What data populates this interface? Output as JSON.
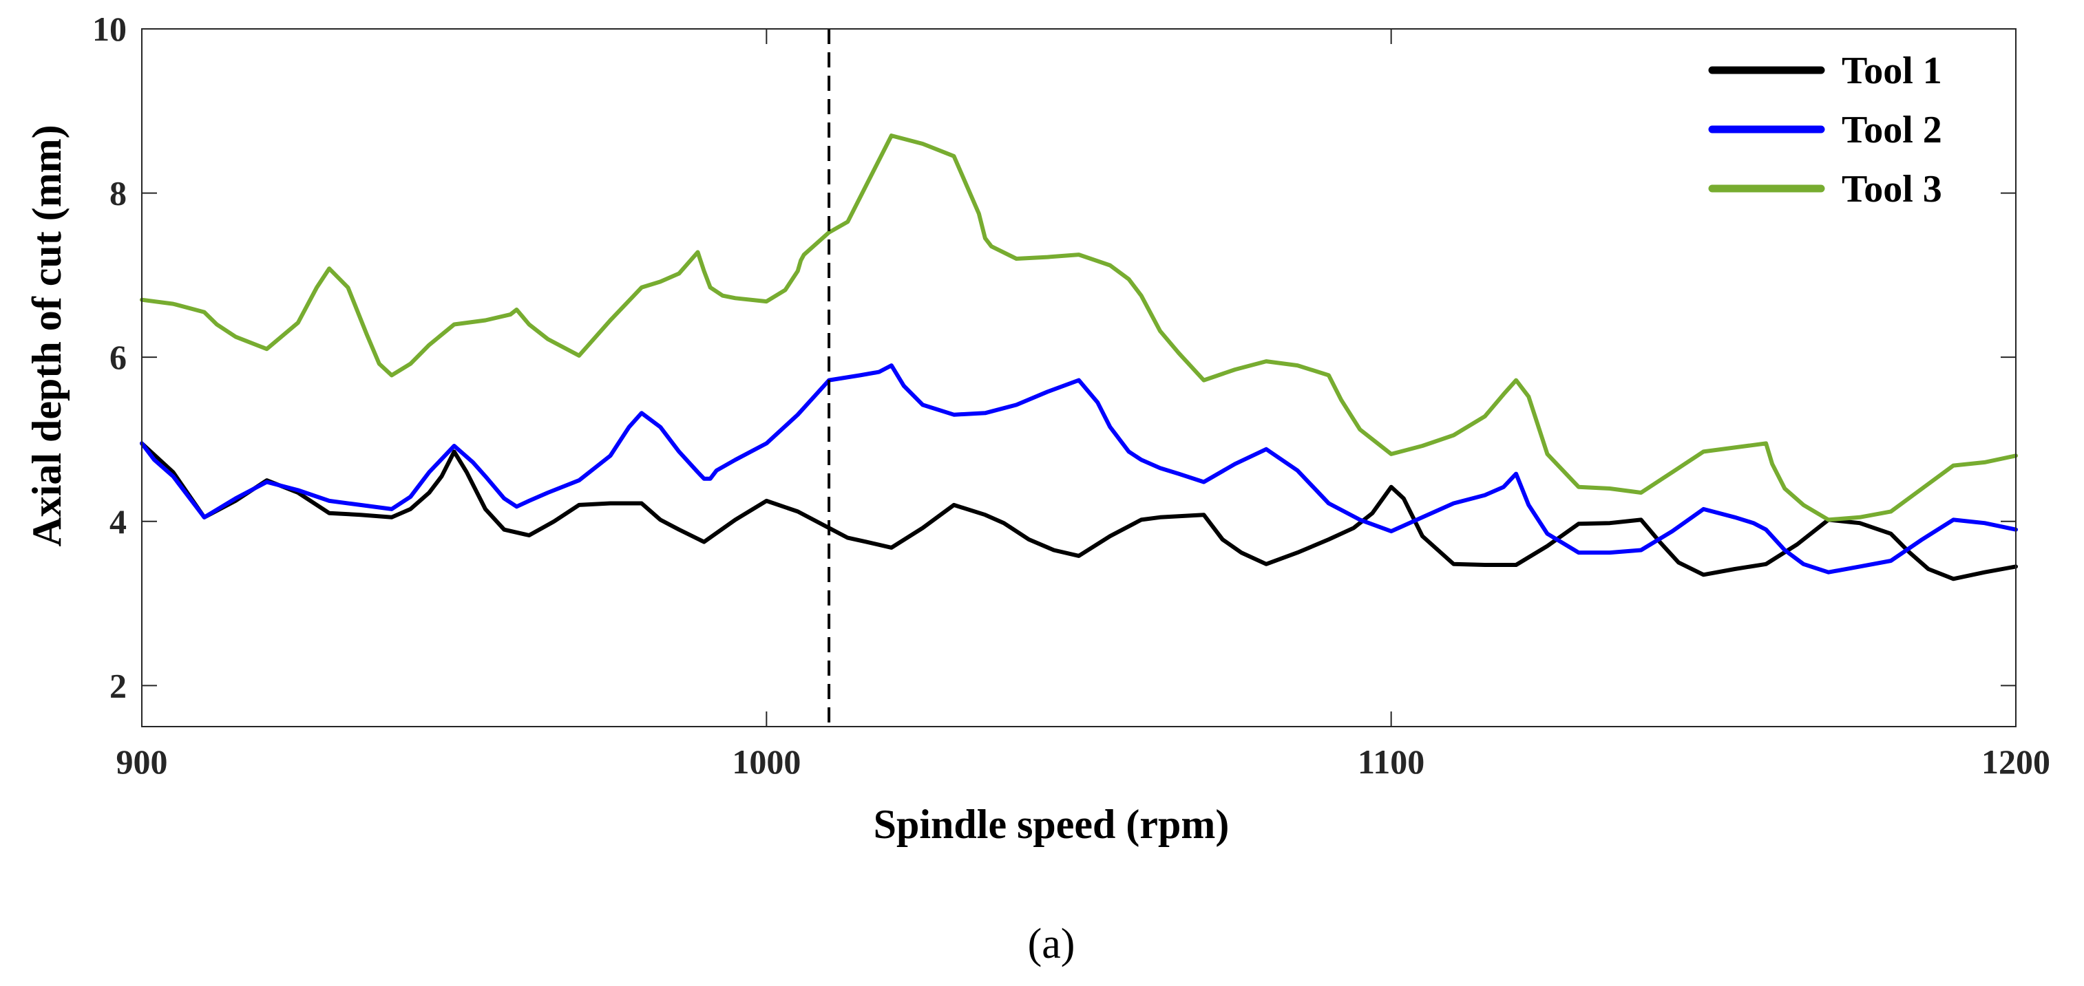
{
  "chart_data": {
    "type": "line",
    "xlabel": "Spindle speed (rpm)",
    "ylabel": "Axial depth of cut (mm)",
    "xlim": [
      900,
      1200
    ],
    "ylim": [
      1.5,
      10
    ],
    "xticks": [
      900,
      1000,
      1100,
      1200
    ],
    "yticks": [
      2,
      4,
      6,
      8,
      10
    ],
    "grid": false,
    "legend_position": "top-right",
    "caption": "(a)",
    "vline": {
      "x": 1010,
      "style": "dashed",
      "color": "#000000"
    },
    "series": [
      {
        "name": "Tool 1",
        "color": "#000000",
        "x": [
          900,
          905,
          910,
          915,
          920,
          925,
          930,
          935,
          940,
          943,
          946,
          948,
          950,
          952,
          955,
          958,
          962,
          966,
          970,
          975,
          980,
          983,
          986,
          990,
          995,
          1000,
          1005,
          1010,
          1013,
          1016,
          1020,
          1025,
          1030,
          1035,
          1038,
          1042,
          1046,
          1050,
          1055,
          1060,
          1063,
          1070,
          1073,
          1076,
          1080,
          1085,
          1090,
          1094,
          1097,
          1100,
          1102,
          1105,
          1110,
          1115,
          1120,
          1125,
          1130,
          1135,
          1140,
          1143,
          1146,
          1150,
          1155,
          1160,
          1165,
          1170,
          1175,
          1180,
          1183,
          1186,
          1190,
          1195,
          1200
        ],
        "values": [
          4.95,
          4.6,
          4.05,
          4.25,
          4.5,
          4.35,
          4.1,
          4.08,
          4.05,
          4.15,
          4.35,
          4.55,
          4.85,
          4.6,
          4.15,
          3.9,
          3.83,
          4.0,
          4.2,
          4.22,
          4.22,
          4.02,
          3.9,
          3.75,
          4.02,
          4.25,
          4.12,
          3.92,
          3.8,
          3.75,
          3.68,
          3.92,
          4.2,
          4.08,
          3.98,
          3.78,
          3.65,
          3.58,
          3.82,
          4.02,
          4.05,
          4.08,
          3.78,
          3.62,
          3.48,
          3.62,
          3.78,
          3.92,
          4.1,
          4.42,
          4.28,
          3.82,
          3.48,
          3.47,
          3.47,
          3.7,
          3.97,
          3.98,
          4.02,
          3.75,
          3.5,
          3.35,
          3.42,
          3.48,
          3.72,
          4.02,
          3.98,
          3.85,
          3.62,
          3.42,
          3.3,
          3.38,
          3.45
        ]
      },
      {
        "name": "Tool 2",
        "color": "#0000ff",
        "x": [
          900,
          902,
          905,
          907,
          910,
          915,
          920,
          925,
          930,
          935,
          940,
          943,
          946,
          950,
          953,
          955,
          958,
          960,
          962,
          965,
          970,
          975,
          978,
          980,
          983,
          986,
          989,
          990,
          991,
          992,
          995,
          1000,
          1005,
          1010,
          1015,
          1018,
          1020,
          1022,
          1025,
          1030,
          1035,
          1040,
          1045,
          1050,
          1053,
          1055,
          1058,
          1060,
          1063,
          1066,
          1070,
          1075,
          1080,
          1085,
          1090,
          1095,
          1100,
          1105,
          1110,
          1115,
          1118,
          1120,
          1122,
          1125,
          1130,
          1135,
          1140,
          1145,
          1150,
          1155,
          1158,
          1160,
          1163,
          1166,
          1170,
          1175,
          1180,
          1185,
          1190,
          1195,
          1200
        ],
        "values": [
          4.95,
          4.75,
          4.55,
          4.35,
          4.05,
          4.28,
          4.48,
          4.38,
          4.25,
          4.2,
          4.15,
          4.3,
          4.6,
          4.92,
          4.72,
          4.55,
          4.28,
          4.18,
          4.25,
          4.35,
          4.5,
          4.8,
          5.15,
          5.32,
          5.15,
          4.85,
          4.6,
          4.52,
          4.52,
          4.62,
          4.75,
          4.95,
          5.3,
          5.72,
          5.78,
          5.82,
          5.9,
          5.65,
          5.42,
          5.3,
          5.32,
          5.42,
          5.58,
          5.72,
          5.45,
          5.15,
          4.85,
          4.75,
          4.65,
          4.58,
          4.48,
          4.7,
          4.88,
          4.62,
          4.22,
          4.02,
          3.88,
          4.05,
          4.22,
          4.32,
          4.42,
          4.58,
          4.2,
          3.85,
          3.62,
          3.62,
          3.65,
          3.88,
          4.15,
          4.05,
          3.98,
          3.9,
          3.65,
          3.48,
          3.38,
          3.45,
          3.52,
          3.78,
          4.02,
          3.98,
          3.9
        ]
      },
      {
        "name": "Tool 3",
        "color": "#77ac30",
        "x": [
          900,
          905,
          910,
          912,
          915,
          920,
          925,
          928,
          930,
          933,
          936,
          938,
          940,
          943,
          946,
          950,
          955,
          959,
          960,
          962,
          965,
          970,
          975,
          980,
          983,
          986,
          989,
          990,
          991,
          993,
          995,
          1000,
          1003,
          1005,
          1005.5,
          1006,
          1010,
          1013,
          1015,
          1020,
          1025,
          1030,
          1034,
          1035,
          1036,
          1040,
          1045,
          1050,
          1055,
          1058,
          1060,
          1063,
          1066,
          1070,
          1075,
          1080,
          1085,
          1090,
          1092,
          1095,
          1100,
          1105,
          1110,
          1115,
          1118,
          1120,
          1122,
          1125,
          1130,
          1135,
          1140,
          1145,
          1150,
          1155,
          1160,
          1161,
          1163,
          1166,
          1170,
          1175,
          1180,
          1185,
          1190,
          1195,
          1200
        ],
        "values": [
          6.7,
          6.65,
          6.55,
          6.4,
          6.25,
          6.1,
          6.42,
          6.85,
          7.08,
          6.85,
          6.28,
          5.92,
          5.78,
          5.92,
          6.15,
          6.4,
          6.45,
          6.52,
          6.58,
          6.4,
          6.22,
          6.02,
          6.45,
          6.85,
          6.92,
          7.02,
          7.28,
          7.05,
          6.85,
          6.75,
          6.72,
          6.68,
          6.82,
          7.05,
          7.18,
          7.25,
          7.52,
          7.65,
          7.95,
          8.7,
          8.6,
          8.45,
          7.75,
          7.45,
          7.35,
          7.2,
          7.22,
          7.25,
          7.12,
          6.95,
          6.75,
          6.32,
          6.05,
          5.72,
          5.85,
          5.95,
          5.9,
          5.78,
          5.48,
          5.12,
          4.82,
          4.92,
          5.05,
          5.28,
          5.55,
          5.72,
          5.52,
          4.82,
          4.42,
          4.4,
          4.35,
          4.6,
          4.85,
          4.9,
          4.95,
          4.7,
          4.4,
          4.2,
          4.02,
          4.05,
          4.12,
          4.4,
          4.68,
          4.72,
          4.8
        ]
      }
    ]
  }
}
